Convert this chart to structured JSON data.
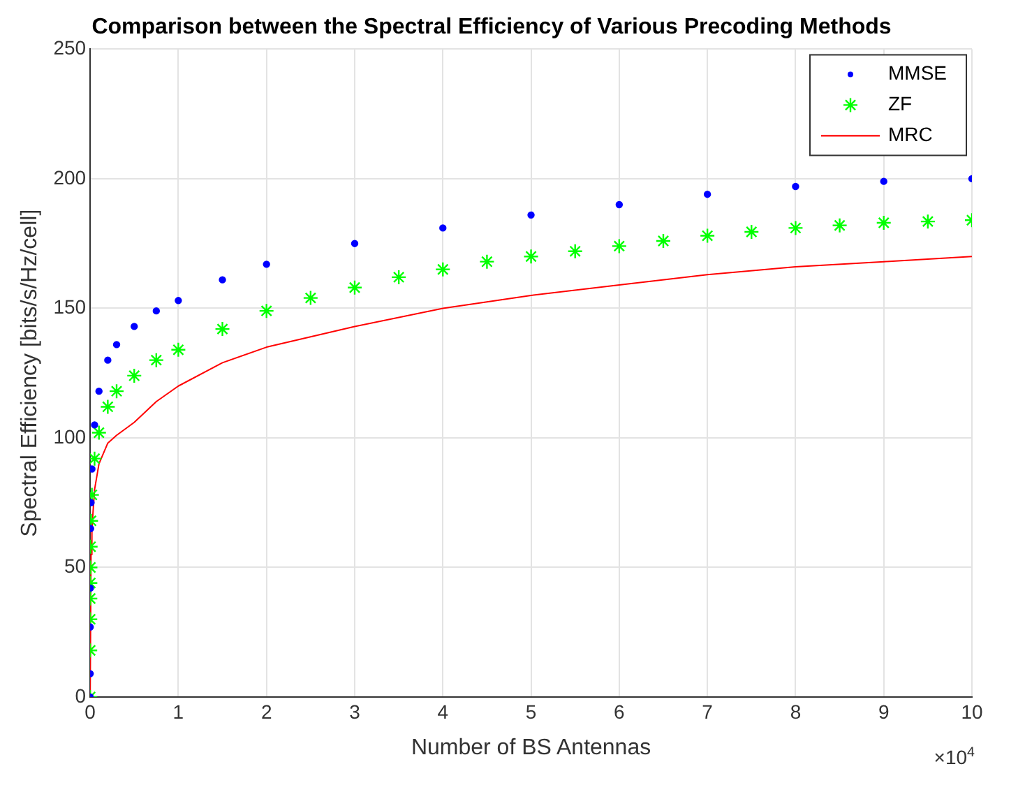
{
  "chart_data": {
    "type": "line",
    "title": "Comparison between the Spectral Efficiency of Various Precoding Methods",
    "xlabel": "Number of BS Antennas",
    "ylabel": "Spectral Efficiency [bits/s/Hz/cell]",
    "annotations": [
      "×10$^{4}$"
    ],
    "xlim": [
      0,
      10
    ],
    "xticks": [
      0,
      1,
      2,
      3,
      4,
      5,
      6,
      7,
      8,
      9,
      10
    ],
    "ylim": [
      0,
      250
    ],
    "yticks": [
      0,
      50,
      100,
      150,
      200,
      250
    ],
    "grid": true,
    "legend": "top right",
    "series": [
      {
        "name": "MMSE",
        "type": "scatter",
        "color": "#0000ff",
        "marker": "circle",
        "x": [
          0,
          0.0005,
          0.001,
          0.002,
          0.005,
          0.01,
          0.02,
          0.05,
          0.1,
          0.2,
          0.3,
          0.5,
          0.75,
          1,
          1.5,
          2,
          3,
          4,
          5,
          6,
          7,
          8,
          9,
          10
        ],
        "values": [
          0,
          9,
          27,
          42,
          65,
          75,
          88,
          105,
          118,
          130,
          136,
          143,
          149,
          153,
          161,
          167,
          175,
          181,
          186,
          190,
          194,
          197,
          199,
          200
        ]
      },
      {
        "name": "ZF",
        "type": "scatter",
        "color": "#00ff00",
        "marker": "cross",
        "x": [
          0,
          0.0005,
          0.001,
          0.0015,
          0.002,
          0.003,
          0.005,
          0.01,
          0.02,
          0.05,
          0.1,
          0.2,
          0.3,
          0.5,
          0.75,
          1,
          1.5,
          2,
          2.5,
          3,
          3.5,
          4,
          4.5,
          5,
          5.5,
          6,
          6.5,
          7,
          7.5,
          8,
          8.5,
          9,
          9.5,
          10
        ],
        "values": [
          0,
          18,
          30,
          38,
          44,
          50,
          58,
          68,
          78,
          92,
          102,
          112,
          118,
          124,
          130,
          134,
          142,
          149,
          154,
          158,
          162,
          165,
          168,
          170,
          172,
          174,
          176,
          178,
          179.5,
          181,
          182,
          183,
          183.5,
          184
        ]
      },
      {
        "name": "MRC",
        "color": "#ff0000",
        "marker": "none",
        "line_style": "solid",
        "x": [
          0,
          0.01,
          0.02,
          0.05,
          0.1,
          0.2,
          0.3,
          0.5,
          0.75,
          1,
          1.5,
          2,
          3,
          4,
          5,
          6,
          7,
          8,
          9,
          10
        ],
        "values": [
          0,
          55,
          65,
          80,
          90,
          98,
          101,
          106,
          114,
          120,
          129,
          135,
          143,
          150,
          155,
          159,
          163,
          166,
          168,
          170
        ]
      }
    ]
  }
}
